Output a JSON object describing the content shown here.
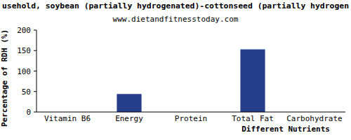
{
  "chart_data": {
    "type": "bar",
    "title": "usehold, soybean (partially hydrogenated)-cottonseed (partially hydrogen",
    "subtitle": "www.dietandfitnesstoday.com",
    "x_label": "Different Nutrients",
    "y_label": "Percentage of RDH (%)",
    "categories": [
      "Vitamin B6",
      "Energy",
      "Protein",
      "Total Fat",
      "Carbohydrate"
    ],
    "values": [
      0,
      44,
      0,
      153,
      0
    ],
    "color": "#263f8c",
    "ylim": [
      0,
      200
    ],
    "yticks": [
      0,
      50,
      100,
      150,
      200
    ],
    "grid": false
  }
}
